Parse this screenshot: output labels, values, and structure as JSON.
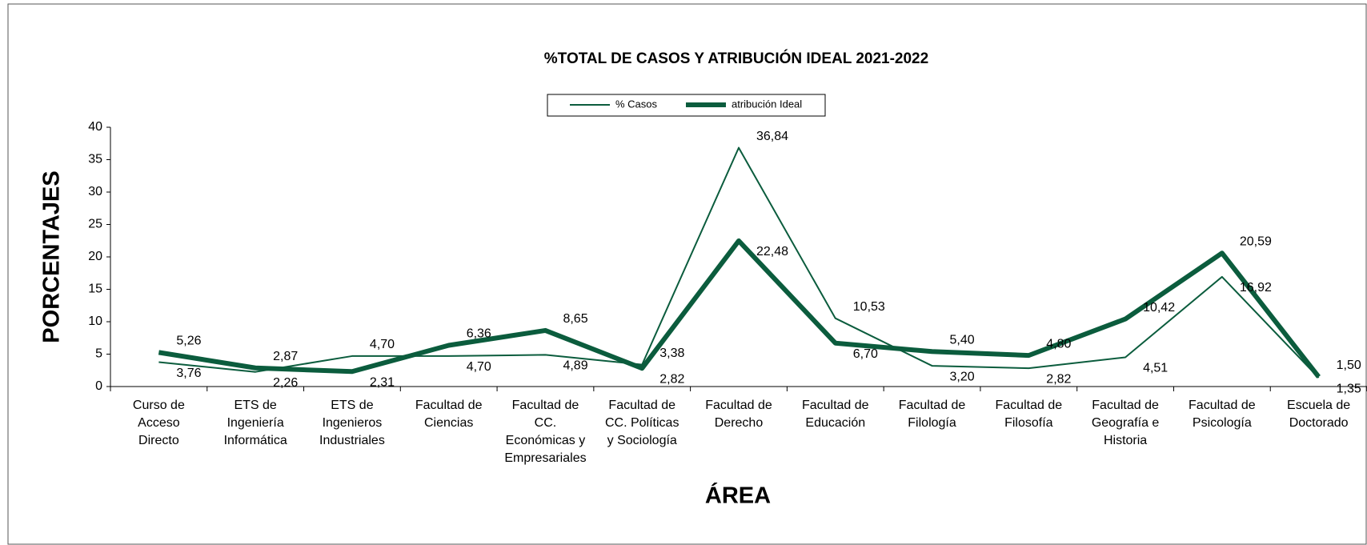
{
  "chart_data": {
    "type": "line",
    "title": "%TOTAL DE CASOS Y ATRIBUCIÓN IDEAL  2021-2022",
    "y_label": "PORCENTAJES",
    "x_label": "ÁREA",
    "categories": [
      "Curso de Acceso Directo",
      "ETS de Ingeniería Informática",
      "ETS de Ingenieros Industriales",
      "Facultad de Ciencias",
      "Facultad de CC. Económicas y Empresariales",
      "Facultad de CC. Políticas y Sociología",
      "Facultad de Derecho",
      "Facultad de Educación",
      "Facultad de Filología",
      "Facultad de Filosofía",
      "Facultad de Geografía e Historia",
      "Facultad de Psicología",
      "Escuela de Doctorado"
    ],
    "series": [
      {
        "name": "% Casos",
        "color": "#0b5c3d",
        "width": 2,
        "values": [
          3.76,
          2.26,
          4.7,
          4.7,
          4.89,
          3.38,
          36.84,
          10.53,
          3.2,
          2.82,
          4.51,
          16.92,
          1.35
        ],
        "value_labels": [
          "3,76",
          "2,26",
          "4,70",
          "4,70",
          "4,89",
          "3,38",
          "36,84",
          "10,53",
          "3,20",
          "2,82",
          "4,51",
          "16,92",
          "1,35"
        ]
      },
      {
        "name": "atribución Ideal",
        "color": "#0b5c3d",
        "width": 6,
        "values": [
          5.26,
          2.87,
          2.31,
          6.36,
          8.65,
          2.82,
          22.48,
          6.7,
          5.4,
          4.8,
          10.42,
          20.59,
          1.5
        ],
        "value_labels": [
          "5,26",
          "2,87",
          "2,31",
          "6,36",
          "8,65",
          "2,82",
          "22,48",
          "6,70",
          "5,40",
          "4,80",
          "10,42",
          "20,59",
          "1,50"
        ]
      }
    ],
    "ylim": [
      0,
      40
    ],
    "yticks": [
      0,
      5,
      10,
      15,
      20,
      25,
      30,
      35,
      40
    ],
    "grid": false,
    "legend": "top"
  }
}
